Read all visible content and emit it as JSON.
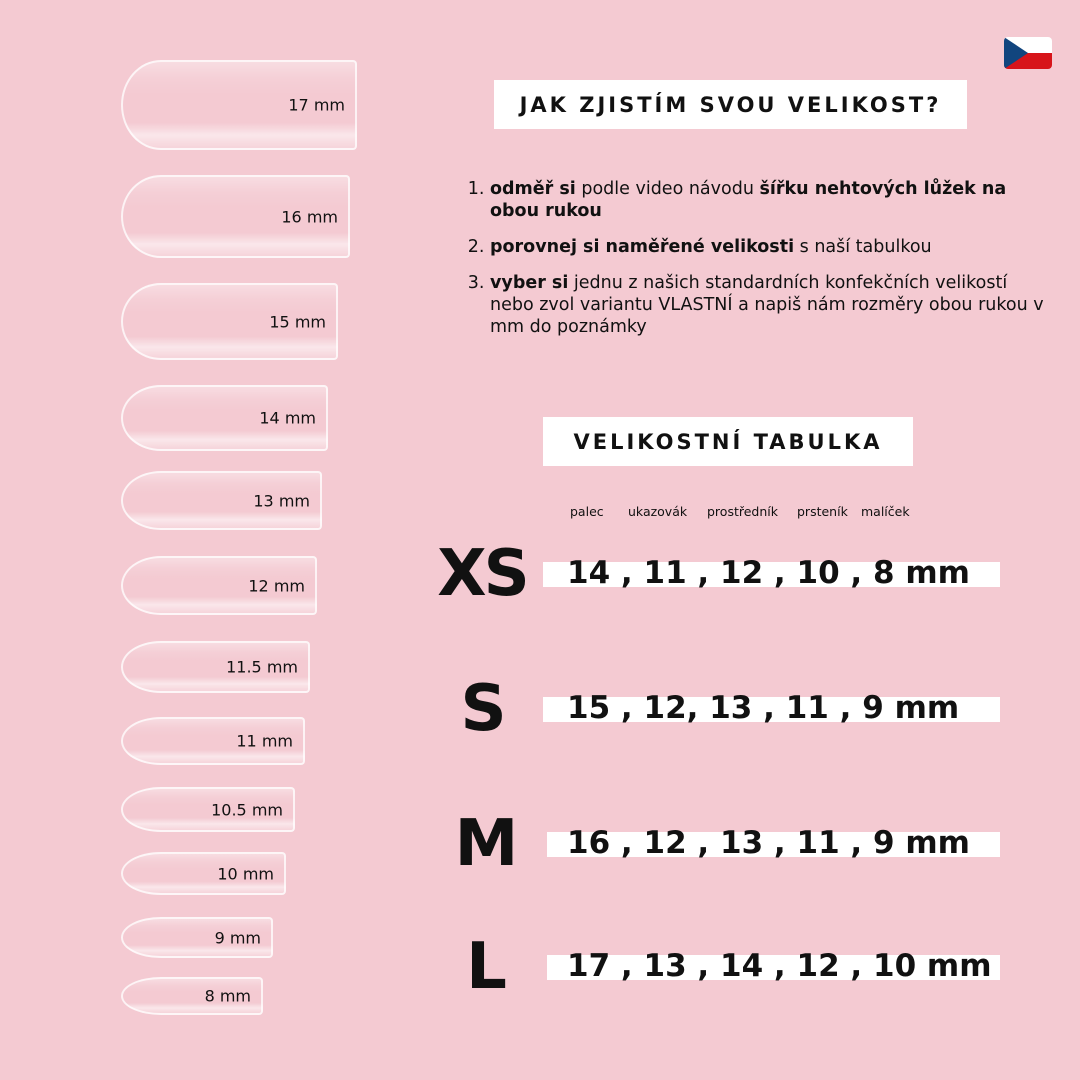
{
  "title": "JAK ZJISTÍM SVOU VELIKOST?",
  "flag_icon": "czech-flag",
  "steps": [
    {
      "parts": [
        {
          "b": true,
          "t": "odměř si"
        },
        {
          "b": false,
          "t": " podle video návodu "
        },
        {
          "b": true,
          "t": "šířku nehtových lůžek na obou rukou"
        }
      ]
    },
    {
      "parts": [
        {
          "b": true,
          "t": "porovnej si naměřené velikosti"
        },
        {
          "b": false,
          "t": " s naší tabulkou"
        }
      ]
    },
    {
      "parts": [
        {
          "b": true,
          "t": "vyber si"
        },
        {
          "b": false,
          "t": " jednu z našich standardních konfekčních velikostí nebo zvol variantu VLASTNÍ a napiš nám rozměry obou rukou v mm do poznámky"
        }
      ]
    }
  ],
  "table_title": "VELIKOSTNÍ TABULKA",
  "columns": [
    "palec",
    "ukazovák",
    "prostředník",
    "prsteník",
    "malíček"
  ],
  "rows": [
    {
      "size": "XS",
      "values": "14 , 11 , 12 , 10 , 8 mm"
    },
    {
      "size": "S",
      "values": "15 , 12, 13 , 11 , 9 mm"
    },
    {
      "size": "M",
      "values": "16 , 12 , 13 , 11 , 9 mm"
    },
    {
      "size": "L",
      "values": "17 , 13 , 14 , 12 , 10 mm"
    }
  ],
  "nails": [
    "17 mm",
    "16 mm",
    "15 mm",
    "14 mm",
    "13 mm",
    "12 mm",
    "11.5 mm",
    "11 mm",
    "10.5 mm",
    "10 mm",
    "9 mm",
    "8 mm"
  ],
  "colors": {
    "background": "#f4cad2",
    "box": "#ffffff",
    "text": "#111111"
  }
}
